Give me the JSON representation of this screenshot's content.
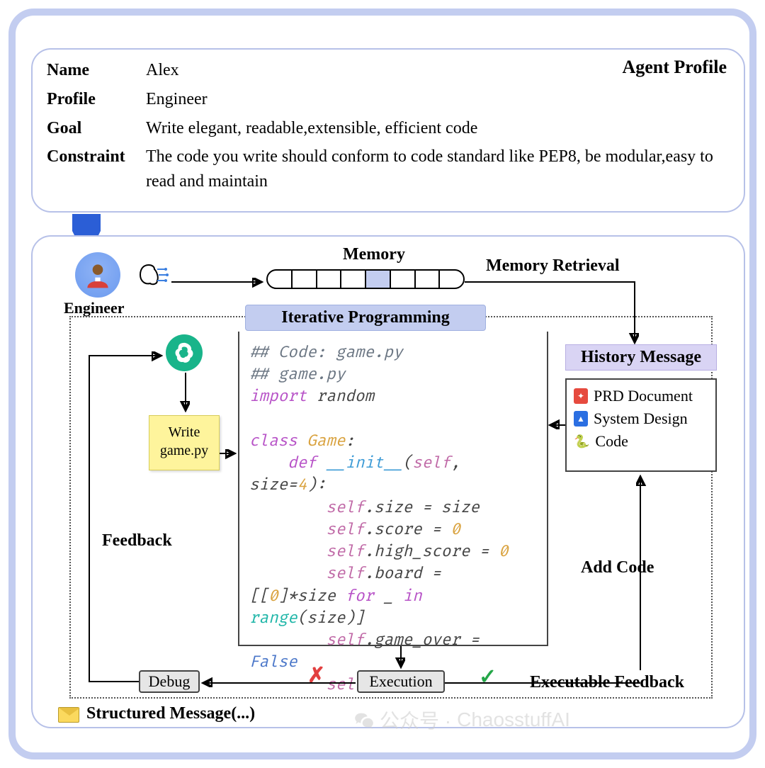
{
  "profile": {
    "title": "Agent Profile",
    "rows": [
      {
        "label": "Name",
        "value": "Alex"
      },
      {
        "label": "Profile",
        "value": "Engineer"
      },
      {
        "label": "Goal",
        "value": "Write elegant, readable,extensible, efficient code"
      },
      {
        "label": "Constraint",
        "value": "The code you write should conform to code standard like PEP8, be modular,easy to read and maintain"
      }
    ]
  },
  "workflow": {
    "engineer_label": "Engineer",
    "memory_label": "Memory",
    "memory_cells": [
      false,
      false,
      false,
      false,
      true,
      false,
      false,
      false
    ],
    "retrieval_label": "Memory Retrieval",
    "iterative_header": "Iterative Programming",
    "sticky_note_line1": "Write",
    "sticky_note_line2": "game.py",
    "feedback_label": "Feedback",
    "history_header": "History Message",
    "history_items": [
      {
        "icon": "pdf",
        "label": "PRD Document"
      },
      {
        "icon": "doc",
        "label": "System Design"
      },
      {
        "icon": "py",
        "label": "Code"
      }
    ],
    "addcode_label": "Add Code",
    "debug_label": "Debug",
    "exec_label": "Execution",
    "execfeedback_label": "Executable Feedback",
    "structured_label": "Structured Message(...)"
  },
  "code": {
    "lines": [
      {
        "t": "comment",
        "s": "## Code: game.py"
      },
      {
        "t": "comment",
        "s": "## game.py"
      },
      {
        "t": "import"
      },
      {
        "t": "blank"
      },
      {
        "t": "class"
      },
      {
        "t": "def_init"
      },
      {
        "t": "size"
      },
      {
        "t": "score"
      },
      {
        "t": "high"
      },
      {
        "t": "board"
      },
      {
        "t": "range"
      },
      {
        "t": "gameover"
      },
      {
        "t": "start"
      }
    ]
  },
  "colors": {
    "frame_border": "#c3cdf0",
    "profile_border": "#b7c1e8",
    "iterative_bg": "#c3cdf0",
    "history_bg": "#d9d4f4",
    "sticky_bg": "#fef49c",
    "openai_bg": "#19b48a",
    "avatar_bg": "#6b9aef",
    "x_color": "#e24040",
    "check_color": "#24a648",
    "comment_color": "#6b7683",
    "keyword_color": "#b752c7",
    "fn_color": "#3d9bd6",
    "class_color": "#d9a23e",
    "self_color": "#c06aa7",
    "builtin_color": "#1fb6a8",
    "bool_color": "#4b77c9"
  },
  "watermark": {
    "prefix": "公众号 ·",
    "name": "ChaosstuffAI"
  }
}
